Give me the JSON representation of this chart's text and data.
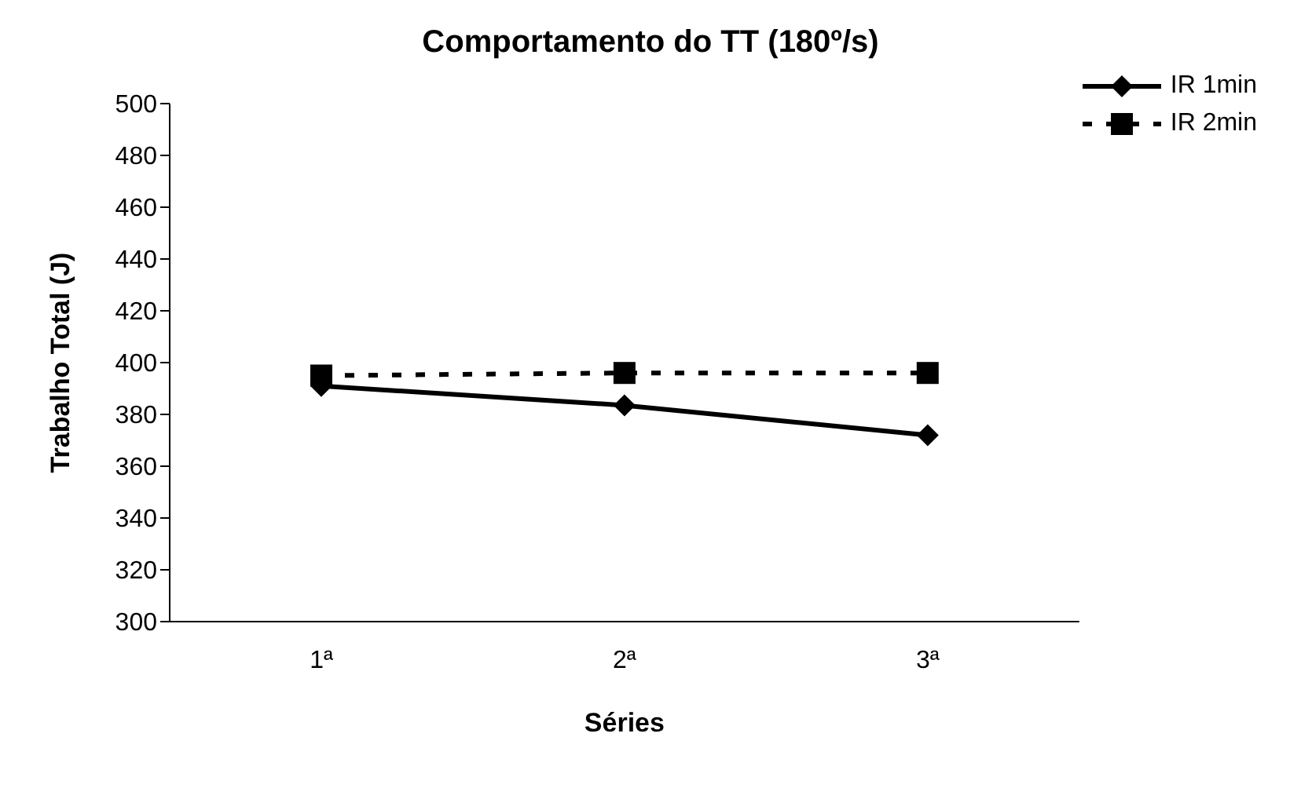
{
  "chart_data": {
    "type": "line",
    "title": "Comportamento do TT (180º/s)",
    "xlabel": "Séries",
    "ylabel": "Trabalho Total (J)",
    "categories": [
      "1ª",
      "2ª",
      "3ª"
    ],
    "series": [
      {
        "name": "IR 1min",
        "color": "#000000",
        "values": [
          391,
          383.5,
          372
        ],
        "marker": "diamond",
        "line_style": "solid"
      },
      {
        "name": "IR 2min",
        "color": "#000000",
        "values": [
          395,
          396,
          396
        ],
        "marker": "square",
        "line_style": "dashed"
      }
    ],
    "ylim": [
      300,
      500
    ],
    "yticks": [
      300,
      320,
      340,
      360,
      380,
      400,
      420,
      440,
      460,
      480,
      500
    ],
    "grid": false,
    "legend": "top right"
  }
}
